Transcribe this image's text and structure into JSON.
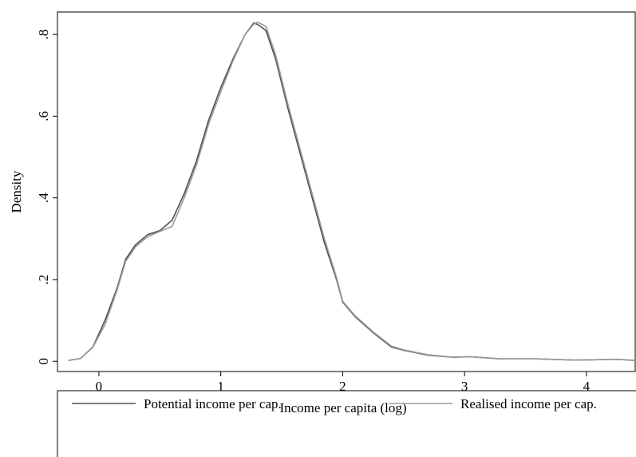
{
  "chart_data": {
    "type": "line",
    "x_label": "Income per capita (log)",
    "y_label": "Density",
    "x": [
      -0.25,
      -0.15,
      -0.05,
      0.05,
      0.15,
      0.22,
      0.3,
      0.4,
      0.5,
      0.6,
      0.7,
      0.8,
      0.9,
      1.0,
      1.1,
      1.2,
      1.27,
      1.3,
      1.37,
      1.45,
      1.55,
      1.65,
      1.75,
      1.85,
      1.95,
      2.0,
      2.1,
      2.25,
      2.4,
      2.5,
      2.7,
      2.9,
      3.05,
      3.3,
      3.6,
      3.9,
      4.1,
      4.25,
      4.4
    ],
    "series": [
      {
        "name": "Potential income per cap.",
        "color": "#505050",
        "values": [
          0.002,
          0.007,
          0.035,
          0.1,
          0.18,
          0.25,
          0.285,
          0.31,
          0.32,
          0.345,
          0.41,
          0.49,
          0.59,
          0.67,
          0.74,
          0.8,
          0.828,
          0.825,
          0.81,
          0.74,
          0.62,
          0.51,
          0.4,
          0.29,
          0.2,
          0.145,
          0.11,
          0.07,
          0.035,
          0.027,
          0.015,
          0.01,
          0.011,
          0.006,
          0.006,
          0.003,
          0.004,
          0.005,
          0.002
        ]
      },
      {
        "name": "Realised income per cap.",
        "color": "#9a9a9a",
        "values": [
          0.002,
          0.007,
          0.034,
          0.09,
          0.175,
          0.245,
          0.28,
          0.305,
          0.318,
          0.33,
          0.4,
          0.48,
          0.58,
          0.66,
          0.735,
          0.8,
          0.825,
          0.83,
          0.82,
          0.75,
          0.63,
          0.52,
          0.41,
          0.3,
          0.205,
          0.147,
          0.112,
          0.072,
          0.037,
          0.028,
          0.016,
          0.01,
          0.011,
          0.006,
          0.006,
          0.003,
          0.004,
          0.005,
          0.002
        ]
      }
    ],
    "xlim": [
      -0.34,
      4.4
    ],
    "ylim": [
      -0.025,
      0.855
    ],
    "xticks": [
      0,
      1,
      2,
      3,
      4
    ],
    "yticks": [
      0,
      {
        "value": 0.2,
        "label": ".2"
      },
      {
        "value": 0.4,
        "label": ".4"
      },
      {
        "value": 0.6,
        "label": ".6"
      },
      {
        "value": 0.8,
        "label": ".8"
      }
    ],
    "grid": false,
    "legend": "bottom"
  }
}
